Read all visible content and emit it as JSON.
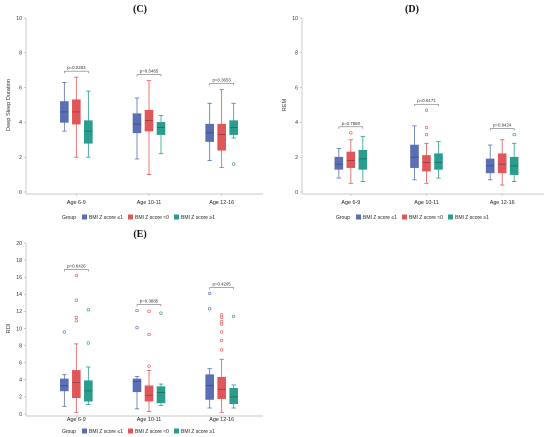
{
  "legend": {
    "title": "Group",
    "items": [
      {
        "label": "BMI Z score ≤1",
        "color": "#5b6fb5"
      },
      {
        "label": "BMI Z score ≈0",
        "color": "#e15759"
      },
      {
        "label": "BMI Z score ≥1",
        "color": "#2a9d8f"
      }
    ]
  },
  "chart_data": [
    {
      "type": "box",
      "panel_label": "(C)",
      "ylabel": "Deep Sleep Duration",
      "ylim": [
        0,
        10
      ],
      "yticks": [
        0,
        2,
        4,
        6,
        8,
        10
      ],
      "categories": [
        "Age 6-9",
        "Age 10-11",
        "Age 12-16"
      ],
      "p_values": [
        "p=0.0293",
        "p=0.5465",
        "p=0.3653"
      ],
      "series": [
        {
          "name": "BMI Z score ≤1",
          "boxes": [
            {
              "whisker_low": 3.5,
              "q1": 4.0,
              "median": 4.6,
              "q3": 5.2,
              "whisker_high": 6.3,
              "outliers": []
            },
            {
              "whisker_low": 1.9,
              "q1": 3.4,
              "median": 3.9,
              "q3": 4.5,
              "whisker_high": 5.4,
              "outliers": []
            },
            {
              "whisker_low": 1.8,
              "q1": 2.9,
              "median": 3.4,
              "q3": 3.9,
              "whisker_high": 5.1,
              "outliers": []
            }
          ]
        },
        {
          "name": "BMI Z score ≈0",
          "boxes": [
            {
              "whisker_low": 2.0,
              "q1": 3.9,
              "median": 4.6,
              "q3": 5.3,
              "whisker_high": 6.6,
              "outliers": []
            },
            {
              "whisker_low": 1.0,
              "q1": 3.5,
              "median": 4.1,
              "q3": 4.7,
              "whisker_high": 6.4,
              "outliers": []
            },
            {
              "whisker_low": 1.4,
              "q1": 2.4,
              "median": 3.3,
              "q3": 3.9,
              "whisker_high": 5.9,
              "outliers": []
            }
          ]
        },
        {
          "name": "BMI Z score ≥1",
          "boxes": [
            {
              "whisker_low": 2.0,
              "q1": 2.8,
              "median": 3.5,
              "q3": 4.1,
              "whisker_high": 5.8,
              "outliers": []
            },
            {
              "whisker_low": 2.2,
              "q1": 3.3,
              "median": 3.7,
              "q3": 4.0,
              "whisker_high": 4.4,
              "outliers": []
            },
            {
              "whisker_low": 3.1,
              "q1": 3.3,
              "median": 3.7,
              "q3": 4.1,
              "whisker_high": 5.1,
              "outliers": [
                1.6
              ]
            }
          ]
        }
      ]
    },
    {
      "type": "box",
      "panel_label": "(D)",
      "ylabel": "REM",
      "ylim": [
        0,
        10
      ],
      "yticks": [
        0,
        2,
        4,
        6,
        8,
        10
      ],
      "categories": [
        "Age 6-9",
        "Age 10-11",
        "Age 12-16"
      ],
      "p_values": [
        "p=0.7660",
        "p=0.6171",
        "p=0.9424"
      ],
      "series": [
        {
          "name": "BMI Z score ≤1",
          "boxes": [
            {
              "whisker_low": 0.8,
              "q1": 1.3,
              "median": 1.6,
              "q3": 2.0,
              "whisker_high": 2.5,
              "outliers": []
            },
            {
              "whisker_low": 0.7,
              "q1": 1.4,
              "median": 2.0,
              "q3": 2.7,
              "whisker_high": 3.8,
              "outliers": []
            },
            {
              "whisker_low": 0.7,
              "q1": 1.1,
              "median": 1.5,
              "q3": 1.9,
              "whisker_high": 2.7,
              "outliers": []
            }
          ]
        },
        {
          "name": "BMI Z score ≈0",
          "boxes": [
            {
              "whisker_low": 0.5,
              "q1": 1.4,
              "median": 1.8,
              "q3": 2.3,
              "whisker_high": 3.0,
              "outliers": [
                3.4
              ]
            },
            {
              "whisker_low": 0.5,
              "q1": 1.2,
              "median": 1.7,
              "q3": 2.1,
              "whisker_high": 2.8,
              "outliers": [
                3.3,
                3.7,
                4.7
              ]
            },
            {
              "whisker_low": 0.4,
              "q1": 1.1,
              "median": 1.6,
              "q3": 2.2,
              "whisker_high": 3.0,
              "outliers": []
            }
          ]
        },
        {
          "name": "BMI Z score ≥1",
          "boxes": [
            {
              "whisker_low": 0.6,
              "q1": 1.3,
              "median": 1.9,
              "q3": 2.4,
              "whisker_high": 3.2,
              "outliers": []
            },
            {
              "whisker_low": 0.8,
              "q1": 1.3,
              "median": 1.7,
              "q3": 2.2,
              "whisker_high": 2.9,
              "outliers": []
            },
            {
              "whisker_low": 0.6,
              "q1": 1.0,
              "median": 1.5,
              "q3": 2.0,
              "whisker_high": 2.8,
              "outliers": [
                3.3
              ]
            }
          ]
        }
      ]
    },
    {
      "type": "box",
      "panel_label": "(E)",
      "ylabel": "RDI",
      "ylim": [
        0,
        20
      ],
      "yticks": [
        0,
        2,
        4,
        6,
        8,
        10,
        12,
        14,
        16,
        18,
        20
      ],
      "categories": [
        "Age 6-9",
        "Age 10-11",
        "Age 12-16"
      ],
      "p_values": [
        "p=0.6426",
        "p=0.3885",
        "p=0.4295"
      ],
      "series": [
        {
          "name": "BMI Z score ≤1",
          "boxes": [
            {
              "whisker_low": 0.9,
              "q1": 2.7,
              "median": 3.3,
              "q3": 4.1,
              "whisker_high": 4.6,
              "outliers": [
                9.6
              ]
            },
            {
              "whisker_low": 0.6,
              "q1": 2.6,
              "median": 3.8,
              "q3": 4.1,
              "whisker_high": 4.4,
              "outliers": [
                10.1,
                12.1
              ]
            },
            {
              "whisker_low": 0.7,
              "q1": 1.7,
              "median": 3.3,
              "q3": 4.6,
              "whisker_high": 5.3,
              "outliers": [
                12.3,
                14.1
              ]
            }
          ]
        },
        {
          "name": "BMI Z score ≈0",
          "boxes": [
            {
              "whisker_low": 0.2,
              "q1": 1.9,
              "median": 3.7,
              "q3": 5.1,
              "whisker_high": 8.2,
              "outliers": [
                10.9,
                11.3,
                13.3,
                16.2
              ]
            },
            {
              "whisker_low": 0.3,
              "q1": 1.5,
              "median": 2.2,
              "q3": 3.3,
              "whisker_high": 5.1,
              "outliers": [
                5.6,
                9.3,
                12.0
              ]
            },
            {
              "whisker_low": 0.2,
              "q1": 1.8,
              "median": 2.9,
              "q3": 4.3,
              "whisker_high": 6.4,
              "outliers": [
                7.5,
                8.6,
                9.6,
                10.5,
                10.8,
                11.3,
                11.6
              ]
            }
          ]
        },
        {
          "name": "BMI Z score ≥1",
          "boxes": [
            {
              "whisker_low": 1.1,
              "q1": 1.5,
              "median": 2.7,
              "q3": 3.9,
              "whisker_high": 5.5,
              "outliers": [
                8.3,
                12.2
              ]
            },
            {
              "whisker_low": 1.0,
              "q1": 1.3,
              "median": 2.5,
              "q3": 3.2,
              "whisker_high": 3.5,
              "outliers": [
                11.8
              ]
            },
            {
              "whisker_low": 0.7,
              "q1": 1.2,
              "median": 2.0,
              "q3": 3.0,
              "whisker_high": 3.4,
              "outliers": [
                11.4
              ]
            }
          ]
        }
      ]
    }
  ]
}
